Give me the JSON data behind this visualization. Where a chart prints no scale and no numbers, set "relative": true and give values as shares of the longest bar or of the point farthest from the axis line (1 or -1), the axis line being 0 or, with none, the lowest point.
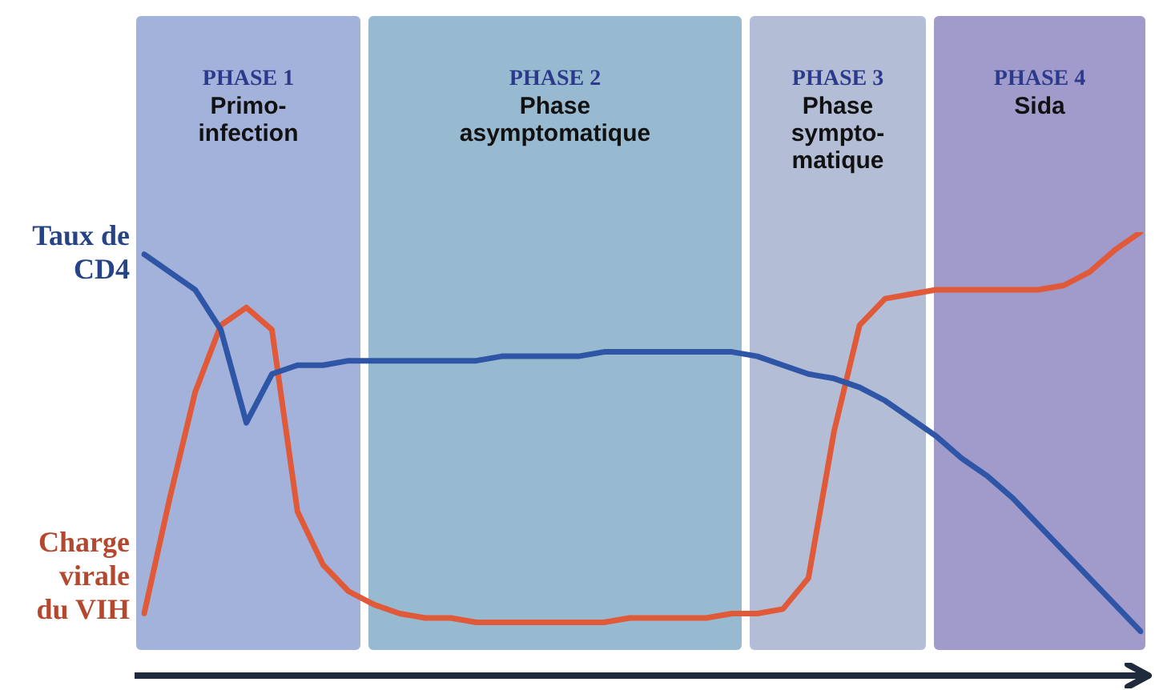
{
  "chart_data": {
    "type": "line",
    "relative": true,
    "tick_labels": false,
    "marker": "none",
    "line_style": "solid",
    "categories": [
      null,
      null,
      null,
      null,
      null,
      null,
      null,
      null,
      null,
      null,
      null,
      null,
      null,
      null,
      null,
      null,
      null,
      null,
      null,
      null,
      null,
      null,
      null,
      null,
      null,
      null,
      null,
      null,
      null,
      null,
      null,
      null,
      null,
      null,
      null,
      null,
      null,
      null,
      null,
      null
    ],
    "series": [
      {
        "name": "Taux de CD4",
        "color": "#2f55a6",
        "values": [
          0.95,
          0.91,
          0.87,
          0.78,
          0.57,
          0.68,
          0.7,
          0.7,
          0.71,
          0.71,
          0.71,
          0.71,
          0.71,
          0.71,
          0.72,
          0.72,
          0.72,
          0.72,
          0.73,
          0.73,
          0.73,
          0.73,
          0.73,
          0.73,
          0.72,
          0.7,
          0.68,
          0.67,
          0.65,
          0.62,
          0.58,
          0.54,
          0.49,
          0.45,
          0.4,
          0.34,
          0.28,
          0.22,
          0.16,
          0.1
        ]
      },
      {
        "name": "Charge virale du VIH",
        "color": "#e05a3a",
        "values": [
          0.14,
          0.4,
          0.64,
          0.79,
          0.83,
          0.78,
          0.37,
          0.25,
          0.19,
          0.16,
          0.14,
          0.13,
          0.13,
          0.12,
          0.12,
          0.12,
          0.12,
          0.12,
          0.12,
          0.13,
          0.13,
          0.13,
          0.13,
          0.14,
          0.14,
          0.15,
          0.22,
          0.55,
          0.79,
          0.85,
          0.86,
          0.87,
          0.87,
          0.87,
          0.87,
          0.87,
          0.88,
          0.91,
          0.96,
          1
        ]
      }
    ],
    "annotations": [
      "PHASE 1\nPrimo-\ninfection",
      "PHASE 2\nPhase\nasymptomatique",
      "PHASE 3\nPhase\nsympto-\nmatique",
      "PHASE 4\nSida"
    ]
  }
}
